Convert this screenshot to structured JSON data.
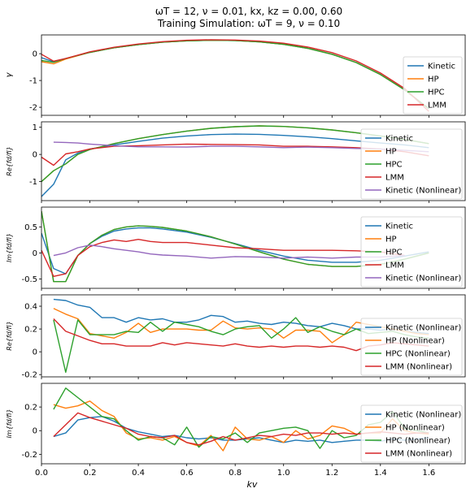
{
  "figure": {
    "title_line1": "ωT = 12, ν = 0.01, kx, kz = 0.00, 0.60",
    "title_line2": "Training Simulation: ωT = 9, ν = 0.10",
    "xlabel": "kv"
  },
  "colors": {
    "Kinetic": "#1f77b4",
    "HP": "#ff7f0e",
    "HPC": "#2ca02c",
    "LMM": "#d62728",
    "Kinetic (Nonlinear)": "#9467bd"
  },
  "chart_data": [
    {
      "type": "line",
      "ylabel": "γ",
      "xlim": [
        0.0,
        1.75
      ],
      "ylim": [
        -2.3,
        0.7
      ],
      "xticks": [
        0.0,
        0.2,
        0.4,
        0.6,
        0.8,
        1.0,
        1.2,
        1.4,
        1.6
      ],
      "yticks": [
        -2,
        -1,
        0
      ],
      "legend_entries": [
        "Kinetic",
        "HP",
        "HPC",
        "LMM"
      ],
      "x": [
        0.0,
        0.05,
        0.1,
        0.2,
        0.3,
        0.4,
        0.5,
        0.6,
        0.7,
        0.8,
        0.9,
        1.0,
        1.1,
        1.2,
        1.3,
        1.4,
        1.5,
        1.6
      ],
      "series": [
        {
          "name": "Kinetic",
          "values": [
            -0.15,
            -0.3,
            -0.18,
            0.05,
            0.22,
            0.34,
            0.43,
            0.48,
            0.5,
            0.49,
            0.44,
            0.35,
            0.2,
            -0.02,
            -0.33,
            -0.78,
            -1.35,
            -2.05
          ]
        },
        {
          "name": "HP",
          "values": [
            -0.3,
            -0.38,
            -0.2,
            0.05,
            0.22,
            0.34,
            0.43,
            0.48,
            0.5,
            0.49,
            0.44,
            0.35,
            0.2,
            -0.02,
            -0.33,
            -0.78,
            -1.35,
            -2.05
          ]
        },
        {
          "name": "HPC",
          "values": [
            -0.25,
            -0.32,
            -0.18,
            0.05,
            0.22,
            0.34,
            0.43,
            0.48,
            0.5,
            0.49,
            0.44,
            0.35,
            0.2,
            -0.02,
            -0.33,
            -0.78,
            -1.35,
            -2.05
          ]
        },
        {
          "name": "LMM",
          "values": [
            -0.02,
            -0.28,
            -0.18,
            0.07,
            0.24,
            0.36,
            0.45,
            0.5,
            0.52,
            0.51,
            0.47,
            0.39,
            0.25,
            0.04,
            -0.27,
            -0.72,
            -1.3,
            -2.15
          ]
        }
      ]
    },
    {
      "type": "line",
      "ylabel": "Re{fd/fi}",
      "xlim": [
        0.0,
        1.75
      ],
      "ylim": [
        -1.7,
        1.2
      ],
      "xticks": [
        0.0,
        0.2,
        0.4,
        0.6,
        0.8,
        1.0,
        1.2,
        1.4,
        1.6
      ],
      "yticks": [
        -1,
        0,
        1
      ],
      "legend_entries": [
        "Kinetic",
        "HP",
        "HPC",
        "LMM",
        "Kinetic (Nonlinear)"
      ],
      "x": [
        0.0,
        0.05,
        0.1,
        0.15,
        0.2,
        0.3,
        0.4,
        0.5,
        0.6,
        0.7,
        0.8,
        0.9,
        1.0,
        1.1,
        1.2,
        1.3,
        1.4,
        1.5,
        1.6
      ],
      "series": [
        {
          "name": "Kinetic",
          "values": [
            -1.55,
            -1.1,
            -0.2,
            0.05,
            0.2,
            0.35,
            0.48,
            0.6,
            0.68,
            0.73,
            0.75,
            0.74,
            0.7,
            0.65,
            0.58,
            0.5,
            0.42,
            0.35,
            0.25
          ]
        },
        {
          "name": "HP",
          "values": [
            -1.0,
            -0.6,
            -0.35,
            0.0,
            0.18,
            0.4,
            0.58,
            0.73,
            0.86,
            0.96,
            1.02,
            1.05,
            1.03,
            0.98,
            0.9,
            0.8,
            0.68,
            0.55,
            0.4
          ]
        },
        {
          "name": "HPC",
          "values": [
            -1.0,
            -0.6,
            -0.35,
            0.0,
            0.18,
            0.4,
            0.58,
            0.73,
            0.86,
            0.96,
            1.02,
            1.05,
            1.03,
            0.98,
            0.9,
            0.8,
            0.68,
            0.55,
            0.4
          ]
        },
        {
          "name": "LMM",
          "values": [
            -0.1,
            -0.4,
            0.02,
            0.1,
            0.2,
            0.3,
            0.32,
            0.35,
            0.38,
            0.37,
            0.36,
            0.35,
            0.3,
            0.3,
            0.28,
            0.25,
            0.2,
            0.1,
            -0.05
          ]
        },
        {
          "name": "Kinetic (Nonlinear)",
          "values": [
            null,
            0.45,
            0.44,
            0.42,
            0.38,
            0.32,
            0.28,
            0.28,
            0.27,
            0.3,
            0.3,
            0.28,
            0.25,
            0.27,
            0.25,
            0.22,
            0.2,
            0.15,
            0.1
          ]
        }
      ]
    },
    {
      "type": "line",
      "ylabel": "Im{fd/fi}",
      "xlim": [
        0.0,
        1.75
      ],
      "ylim": [
        -0.68,
        0.88
      ],
      "xticks": [
        0.0,
        0.2,
        0.4,
        0.6,
        0.8,
        1.0,
        1.2,
        1.4,
        1.6
      ],
      "yticks": [
        -0.5,
        0.0,
        0.5
      ],
      "legend_entries": [
        "Kinetic",
        "HP",
        "HPC",
        "LMM",
        "Kinetic (Nonlinear)"
      ],
      "x": [
        0.0,
        0.05,
        0.1,
        0.15,
        0.2,
        0.25,
        0.3,
        0.35,
        0.4,
        0.45,
        0.5,
        0.6,
        0.7,
        0.8,
        0.9,
        1.0,
        1.1,
        1.2,
        1.3,
        1.4,
        1.5,
        1.6
      ],
      "series": [
        {
          "name": "Kinetic",
          "values": [
            0.38,
            -0.3,
            -0.4,
            -0.05,
            0.18,
            0.32,
            0.42,
            0.46,
            0.48,
            0.48,
            0.46,
            0.4,
            0.3,
            0.18,
            0.05,
            -0.06,
            -0.14,
            -0.18,
            -0.18,
            -0.14,
            -0.06,
            0.02
          ]
        },
        {
          "name": "HP",
          "values": [
            0.8,
            -0.55,
            -0.55,
            -0.05,
            0.18,
            0.34,
            0.45,
            0.5,
            0.52,
            0.51,
            0.49,
            0.42,
            0.31,
            0.17,
            0.02,
            -0.12,
            -0.22,
            -0.26,
            -0.26,
            -0.22,
            -0.12,
            0.0
          ]
        },
        {
          "name": "HPC",
          "values": [
            0.8,
            -0.55,
            -0.55,
            -0.05,
            0.18,
            0.34,
            0.45,
            0.5,
            0.52,
            0.51,
            0.49,
            0.42,
            0.31,
            0.17,
            0.02,
            -0.12,
            -0.22,
            -0.26,
            -0.26,
            -0.22,
            -0.12,
            0.0
          ]
        },
        {
          "name": "LMM",
          "values": [
            0.05,
            -0.45,
            -0.4,
            -0.05,
            0.12,
            0.2,
            0.25,
            0.22,
            0.26,
            0.22,
            0.2,
            0.2,
            0.15,
            0.1,
            0.08,
            0.05,
            0.05,
            0.05,
            0.04,
            0.02,
            -0.05,
            null
          ]
        },
        {
          "name": "Kinetic (Nonlinear)",
          "values": [
            null,
            -0.05,
            0.0,
            0.1,
            0.15,
            0.12,
            0.08,
            0.05,
            0.02,
            -0.02,
            -0.04,
            -0.06,
            -0.1,
            -0.07,
            -0.08,
            -0.1,
            -0.08,
            -0.1,
            -0.08,
            -0.08,
            -0.05,
            null
          ]
        }
      ]
    },
    {
      "type": "line",
      "ylabel": "Re{fd/fi}",
      "xlim": [
        0.0,
        1.75
      ],
      "ylim": [
        -0.22,
        0.5
      ],
      "xticks": [
        0.0,
        0.2,
        0.4,
        0.6,
        0.8,
        1.0,
        1.2,
        1.4,
        1.6
      ],
      "yticks": [
        -0.2,
        0.0,
        0.2,
        0.4
      ],
      "legend_entries": [
        "Kinetic (Nonlinear)",
        "HP (Nonlinear)",
        "HPC (Nonlinear)",
        "LMM (Nonlinear)"
      ],
      "x": [
        0.05,
        0.1,
        0.15,
        0.2,
        0.25,
        0.3,
        0.35,
        0.4,
        0.45,
        0.5,
        0.55,
        0.6,
        0.65,
        0.7,
        0.75,
        0.8,
        0.85,
        0.9,
        0.95,
        1.0,
        1.05,
        1.1,
        1.15,
        1.2,
        1.25,
        1.3,
        1.35,
        1.4,
        1.45,
        1.5,
        1.55,
        1.6
      ],
      "series": [
        {
          "name": "Kinetic (Nonlinear)",
          "values": [
            0.46,
            0.45,
            0.41,
            0.39,
            0.3,
            0.3,
            0.26,
            0.3,
            0.28,
            0.29,
            0.26,
            0.26,
            0.28,
            0.32,
            0.31,
            0.26,
            0.27,
            0.25,
            0.24,
            0.26,
            0.25,
            0.23,
            0.22,
            0.25,
            0.23,
            0.2,
            0.2,
            0.19,
            0.2,
            0.18,
            0.17,
            0.16
          ]
        },
        {
          "name": "HP (Nonlinear)",
          "values": [
            0.38,
            0.33,
            0.29,
            0.16,
            0.14,
            0.12,
            0.17,
            0.25,
            0.17,
            0.2,
            0.2,
            0.2,
            0.19,
            0.19,
            0.27,
            0.21,
            0.2,
            0.21,
            0.2,
            0.12,
            0.19,
            0.19,
            0.18,
            0.08,
            0.15,
            0.26,
            0.24,
            0.22,
            0.2,
            0.18,
            0.16,
            0.15
          ]
        },
        {
          "name": "HPC (Nonlinear)",
          "values": [
            0.28,
            -0.18,
            0.28,
            0.15,
            0.15,
            0.15,
            0.18,
            0.17,
            0.26,
            0.18,
            0.26,
            0.24,
            0.22,
            0.18,
            0.15,
            0.2,
            0.22,
            0.23,
            0.12,
            0.2,
            0.3,
            0.17,
            0.22,
            0.18,
            0.15,
            0.2,
            0.16,
            0.17,
            0.18,
            0.15,
            0.13,
            0.12
          ]
        },
        {
          "name": "LMM (Nonlinear)",
          "values": [
            0.29,
            0.18,
            0.14,
            0.1,
            0.07,
            0.07,
            0.05,
            0.05,
            0.05,
            0.08,
            0.06,
            0.08,
            0.07,
            0.06,
            0.05,
            0.07,
            0.05,
            0.04,
            0.05,
            0.04,
            0.05,
            0.05,
            0.04,
            0.05,
            0.04,
            0.01,
            0.05,
            0.06,
            0.08,
            0.07,
            0.06,
            0.05
          ]
        }
      ]
    },
    {
      "type": "line",
      "ylabel": "Im{fd/fi}",
      "xlim": [
        0.0,
        1.75
      ],
      "ylim": [
        -0.28,
        0.4
      ],
      "xticks": [
        0.0,
        0.2,
        0.4,
        0.6,
        0.8,
        1.0,
        1.2,
        1.4,
        1.6
      ],
      "yticks": [
        -0.2,
        0.0,
        0.2
      ],
      "legend_entries": [
        "Kinetic (Nonlinear)",
        "HP (Nonlinear)",
        "HPC (Nonlinear)",
        "LMM (Nonlinear)"
      ],
      "x": [
        0.05,
        0.1,
        0.15,
        0.2,
        0.25,
        0.3,
        0.35,
        0.4,
        0.45,
        0.5,
        0.55,
        0.6,
        0.65,
        0.7,
        0.75,
        0.8,
        0.85,
        0.9,
        0.95,
        1.0,
        1.05,
        1.1,
        1.15,
        1.2,
        1.25,
        1.3,
        1.35,
        1.4,
        1.45,
        1.5,
        1.55,
        1.6
      ],
      "series": [
        {
          "name": "Kinetic (Nonlinear)",
          "values": [
            -0.05,
            -0.02,
            0.09,
            0.11,
            0.12,
            0.08,
            0.02,
            -0.01,
            -0.03,
            -0.05,
            -0.04,
            -0.06,
            -0.07,
            -0.06,
            -0.08,
            -0.08,
            -0.07,
            -0.06,
            -0.08,
            -0.1,
            -0.08,
            -0.09,
            -0.08,
            -0.1,
            -0.09,
            -0.08,
            -0.08,
            -0.09,
            -0.07,
            -0.08,
            -0.07,
            -0.06
          ]
        },
        {
          "name": "HP (Nonlinear)",
          "values": [
            0.22,
            0.19,
            0.21,
            0.25,
            0.17,
            0.12,
            -0.02,
            -0.07,
            -0.06,
            -0.08,
            -0.05,
            -0.1,
            -0.13,
            -0.04,
            -0.17,
            0.03,
            -0.07,
            -0.08,
            -0.05,
            -0.1,
            0.0,
            -0.07,
            -0.04,
            0.04,
            0.02,
            -0.03,
            -0.02,
            -0.02,
            0.1,
            0.0,
            -0.02,
            -0.03
          ]
        },
        {
          "name": "HPC (Nonlinear)",
          "values": [
            0.18,
            0.36,
            0.28,
            0.2,
            0.12,
            0.1,
            0.0,
            -0.08,
            -0.05,
            -0.06,
            -0.12,
            0.03,
            -0.14,
            -0.05,
            -0.07,
            -0.02,
            -0.1,
            -0.02,
            0.0,
            0.02,
            0.03,
            0.0,
            -0.15,
            0.0,
            -0.06,
            -0.04,
            0.05,
            0.07,
            0.16,
            0.02,
            0.0,
            -0.02
          ]
        },
        {
          "name": "LMM (Nonlinear)",
          "values": [
            -0.05,
            0.05,
            0.15,
            0.11,
            0.08,
            0.05,
            0.02,
            -0.03,
            -0.05,
            -0.06,
            -0.04,
            -0.1,
            -0.12,
            -0.09,
            -0.05,
            -0.08,
            -0.06,
            -0.04,
            -0.05,
            -0.03,
            -0.04,
            -0.02,
            -0.02,
            -0.03,
            -0.02,
            -0.03,
            -0.02,
            -0.01,
            -0.02,
            -0.03,
            -0.02,
            -0.02
          ]
        }
      ]
    }
  ]
}
